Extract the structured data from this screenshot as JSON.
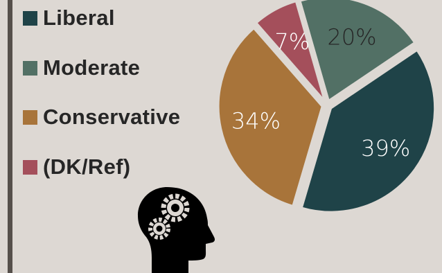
{
  "chart_data": {
    "type": "pie",
    "slices": [
      {
        "name": "Liberal",
        "value": 39,
        "label": "39%",
        "color": "#1f4348",
        "label_color": "#ffffff"
      },
      {
        "name": "Conservative",
        "value": 34,
        "label": "34%",
        "color": "#a8743a",
        "label_color": "#ffffff"
      },
      {
        "name": "(DK/Ref)",
        "value": 7,
        "label": "7%",
        "color": "#a44f5b",
        "label_color": "#ffffff"
      },
      {
        "name": "Moderate",
        "value": 20,
        "label": "20%",
        "color": "#527065",
        "label_color": "#262626"
      }
    ],
    "legend": {
      "placement": "left",
      "items": [
        {
          "label": "Liberal",
          "color": "#1f4348"
        },
        {
          "label": "Moderate",
          "color": "#527065"
        },
        {
          "label": "Conservative",
          "color": "#a8743a"
        },
        {
          "label": "(DK/Ref)",
          "color": "#a44f5b"
        }
      ]
    }
  },
  "decoration": {
    "icon": "head-with-gears-icon"
  },
  "colors": {
    "background": "#ddd8d3",
    "accent_bar": "#56504b",
    "text": "#262626"
  }
}
